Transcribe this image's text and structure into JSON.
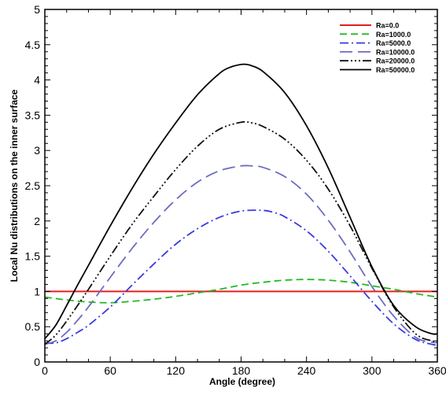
{
  "chart_data": {
    "type": "line",
    "title": "",
    "xlabel": "Angle (degree)",
    "ylabel": "Local Nu distributions on the inner surface",
    "xlim": [
      0,
      360
    ],
    "ylim": [
      0,
      5
    ],
    "x_ticks": [
      "0",
      "60",
      "120",
      "180",
      "240",
      "300",
      "360"
    ],
    "y_ticks": [
      "0",
      "0.5",
      "1",
      "1.5",
      "2",
      "2.5",
      "3",
      "3.5",
      "4",
      "4.5",
      "5"
    ],
    "legend_position": "top-right",
    "grid": false,
    "series": [
      {
        "name": "Ra=0.0",
        "color": "#e02020",
        "style": "solid",
        "x": [
          0,
          60,
          120,
          180,
          240,
          300,
          360
        ],
        "y": [
          1.0,
          1.0,
          1.0,
          1.0,
          1.0,
          1.0,
          1.0
        ]
      },
      {
        "name": "Ra=1000.0",
        "color": "#22bb22",
        "style": "dashed",
        "x": [
          0,
          20,
          40,
          60,
          80,
          100,
          120,
          140,
          160,
          180,
          200,
          220,
          240,
          260,
          280,
          300,
          320,
          340,
          360
        ],
        "y": [
          0.92,
          0.88,
          0.85,
          0.84,
          0.86,
          0.89,
          0.93,
          0.98,
          1.03,
          1.09,
          1.13,
          1.16,
          1.17,
          1.16,
          1.13,
          1.08,
          1.03,
          0.97,
          0.92
        ]
      },
      {
        "name": "Ra=5000.0",
        "color": "#3a3ae0",
        "style": "dashdot",
        "x": [
          0,
          10,
          20,
          30,
          40,
          60,
          80,
          100,
          120,
          140,
          160,
          180,
          200,
          210,
          220,
          240,
          260,
          280,
          300,
          320,
          340,
          355,
          360
        ],
        "y": [
          0.27,
          0.27,
          0.33,
          0.42,
          0.52,
          0.78,
          1.09,
          1.39,
          1.67,
          1.89,
          2.05,
          2.14,
          2.15,
          2.12,
          2.06,
          1.86,
          1.57,
          1.22,
          0.86,
          0.54,
          0.32,
          0.25,
          0.24
        ]
      },
      {
        "name": "Ra=10000.0",
        "color": "#6c6cc4",
        "style": "longdash",
        "x": [
          0,
          10,
          20,
          30,
          40,
          60,
          80,
          100,
          120,
          140,
          160,
          180,
          190,
          200,
          220,
          240,
          260,
          280,
          300,
          320,
          340,
          355,
          360
        ],
        "y": [
          0.25,
          0.3,
          0.42,
          0.59,
          0.78,
          1.2,
          1.61,
          1.98,
          2.3,
          2.55,
          2.71,
          2.78,
          2.78,
          2.76,
          2.63,
          2.38,
          2.01,
          1.56,
          1.07,
          0.65,
          0.35,
          0.28,
          0.28
        ]
      },
      {
        "name": "Ra=20000.0",
        "color": "#111111",
        "style": "dashdotdotdot",
        "x": [
          0,
          10,
          20,
          30,
          40,
          60,
          80,
          100,
          120,
          140,
          160,
          180,
          190,
          200,
          220,
          240,
          260,
          280,
          300,
          320,
          340,
          355,
          360
        ],
        "y": [
          0.25,
          0.38,
          0.58,
          0.8,
          1.03,
          1.5,
          1.95,
          2.35,
          2.73,
          3.06,
          3.3,
          3.4,
          3.39,
          3.34,
          3.16,
          2.86,
          2.45,
          1.93,
          1.33,
          0.78,
          0.4,
          0.3,
          0.3
        ]
      },
      {
        "name": "Ra=50000.0",
        "color": "#000000",
        "style": "solid",
        "x": [
          0,
          10,
          20,
          30,
          40,
          60,
          80,
          100,
          120,
          140,
          160,
          170,
          180,
          185,
          190,
          200,
          220,
          240,
          260,
          280,
          300,
          320,
          340,
          355,
          360
        ],
        "y": [
          0.33,
          0.52,
          0.8,
          1.09,
          1.37,
          1.93,
          2.46,
          2.95,
          3.39,
          3.79,
          4.09,
          4.18,
          4.22,
          4.22,
          4.2,
          4.12,
          3.82,
          3.35,
          2.75,
          2.05,
          1.35,
          0.8,
          0.5,
          0.4,
          0.4
        ]
      }
    ]
  }
}
